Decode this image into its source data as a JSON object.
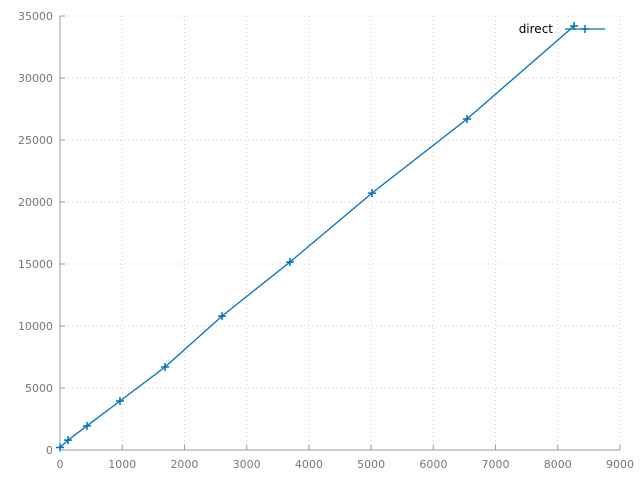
{
  "chart_data": {
    "type": "line",
    "x": [
      0,
      128,
      434,
      964,
      1688,
      2604,
      3696,
      5014,
      6541,
      8261
    ],
    "series": [
      {
        "name": "direct",
        "color": "#0072bd",
        "values": [
          200,
          800,
          1950,
          3950,
          6690,
          10800,
          15160,
          20720,
          26690,
          34190
        ]
      }
    ],
    "xlim": [
      0,
      9000
    ],
    "xticks": [
      0,
      1000,
      2000,
      3000,
      4000,
      5000,
      6000,
      7000,
      8000,
      9000
    ],
    "ylim": [
      0,
      35000
    ],
    "yticks": [
      0,
      5000,
      10000,
      15000,
      20000,
      25000,
      30000,
      35000
    ],
    "grid": true,
    "legend": "top-right"
  }
}
